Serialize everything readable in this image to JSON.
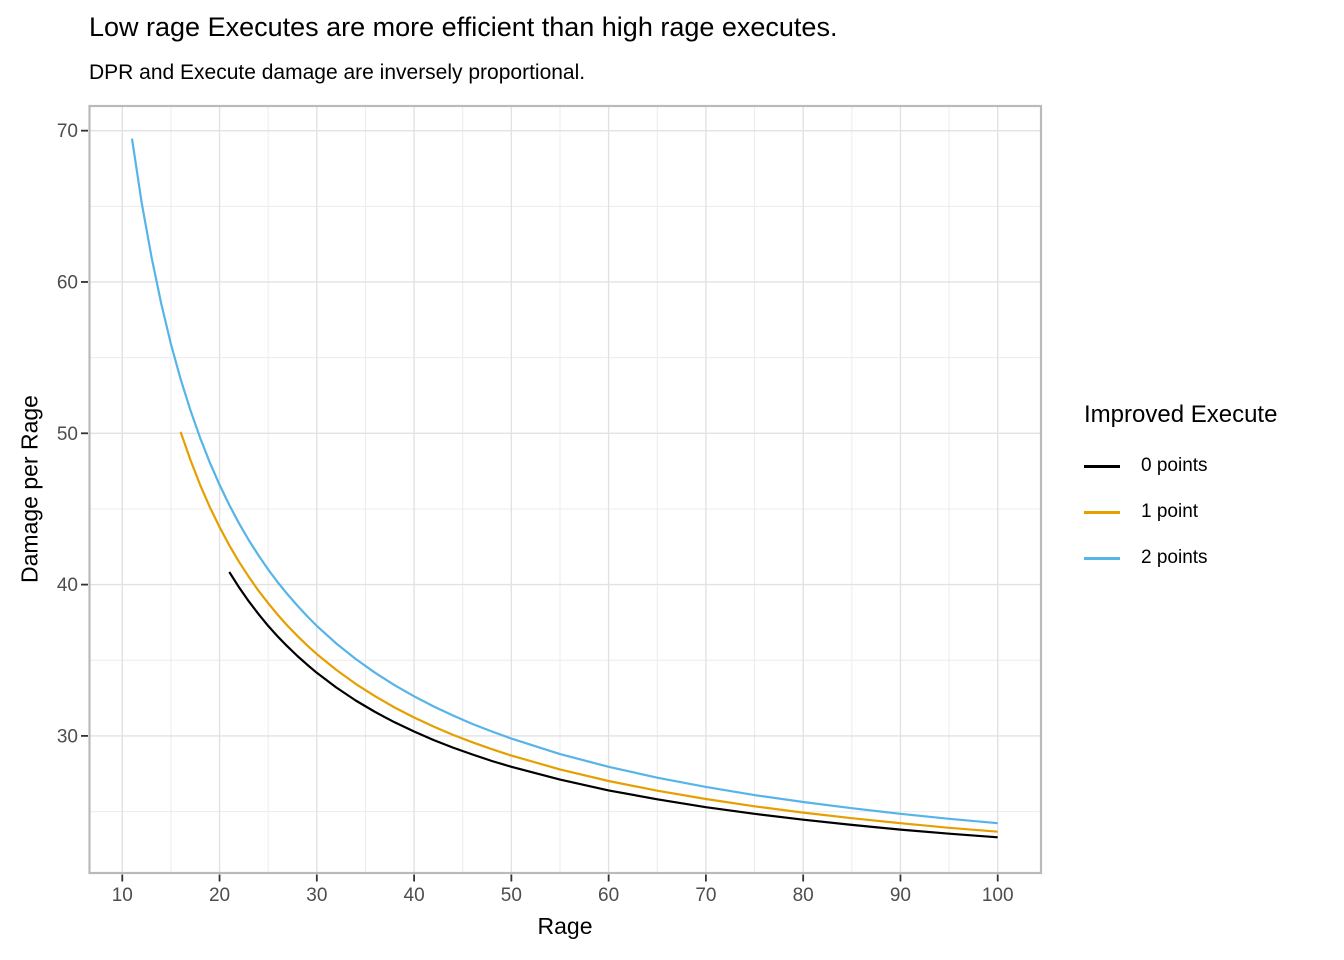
{
  "page": {
    "background": "#FFFFFF"
  },
  "chart_data": {
    "type": "line",
    "title": "Low rage Executes are more efficient than high rage executes.",
    "subtitle": "DPR and Execute damage are inversely proportional.",
    "xlabel": "Rage",
    "ylabel": "Damage per Rage",
    "legend_title": "Improved Execute",
    "legend_position": "right",
    "grid": "major+minor",
    "xlim": [
      6.63,
      104.45
    ],
    "ylim": [
      20.94,
      71.63
    ],
    "x_ticks": [
      10,
      20,
      30,
      40,
      50,
      60,
      70,
      80,
      90,
      100
    ],
    "y_ticks": [
      30,
      40,
      50,
      60,
      70
    ],
    "x_minor_ticks": [
      15,
      25,
      35,
      45,
      55,
      65,
      75,
      85,
      95
    ],
    "y_minor_ticks": [
      25,
      35,
      45,
      55,
      65
    ],
    "colors": {
      "grid_major": "#E2E2E2",
      "grid_minor": "#ECECEC",
      "panel_border": "#BABABA",
      "tick_mark": "#333333",
      "tick_label": "#4D4D4D"
    },
    "series": [
      {
        "name": "0 points",
        "color": "#000000",
        "points": [
          [
            21,
            40.83
          ],
          [
            22,
            39.82
          ],
          [
            23,
            38.9
          ],
          [
            24,
            38.05
          ],
          [
            25,
            37.27
          ],
          [
            26,
            36.56
          ],
          [
            27,
            35.9
          ],
          [
            28,
            35.28
          ],
          [
            29,
            34.71
          ],
          [
            30,
            34.17
          ],
          [
            32,
            33.2
          ],
          [
            34,
            32.34
          ],
          [
            36,
            31.58
          ],
          [
            38,
            30.9
          ],
          [
            40,
            30.29
          ],
          [
            42,
            29.73
          ],
          [
            44,
            29.23
          ],
          [
            46,
            28.77
          ],
          [
            48,
            28.34
          ],
          [
            50,
            27.96
          ],
          [
            55,
            27.11
          ],
          [
            60,
            26.4
          ],
          [
            65,
            25.81
          ],
          [
            70,
            25.29
          ],
          [
            75,
            24.85
          ],
          [
            80,
            24.46
          ],
          [
            85,
            24.12
          ],
          [
            90,
            23.81
          ],
          [
            95,
            23.54
          ],
          [
            100,
            23.3
          ]
        ]
      },
      {
        "name": "1 point",
        "color": "#E69F00",
        "points": [
          [
            16,
            50.09
          ],
          [
            17,
            48.24
          ],
          [
            18,
            46.59
          ],
          [
            19,
            45.12
          ],
          [
            20,
            43.8
          ],
          [
            21,
            42.6
          ],
          [
            22,
            41.51
          ],
          [
            23,
            40.52
          ],
          [
            24,
            39.6
          ],
          [
            25,
            38.77
          ],
          [
            26,
            37.99
          ],
          [
            27,
            37.27
          ],
          [
            28,
            36.61
          ],
          [
            29,
            35.99
          ],
          [
            30,
            35.41
          ],
          [
            32,
            34.36
          ],
          [
            34,
            33.44
          ],
          [
            36,
            32.62
          ],
          [
            38,
            31.88
          ],
          [
            40,
            31.22
          ],
          [
            42,
            30.62
          ],
          [
            44,
            30.07
          ],
          [
            46,
            29.58
          ],
          [
            48,
            29.12
          ],
          [
            50,
            28.7
          ],
          [
            55,
            27.79
          ],
          [
            60,
            27.02
          ],
          [
            65,
            26.38
          ],
          [
            70,
            25.83
          ],
          [
            75,
            25.35
          ],
          [
            80,
            24.93
          ],
          [
            85,
            24.56
          ],
          [
            90,
            24.23
          ],
          [
            95,
            23.93
          ],
          [
            100,
            23.67
          ]
        ]
      },
      {
        "name": "2 points",
        "color": "#56B4E9",
        "points": [
          [
            11,
            69.47
          ],
          [
            12,
            65.23
          ],
          [
            13,
            61.65
          ],
          [
            14,
            58.58
          ],
          [
            15,
            55.91
          ],
          [
            16,
            53.58
          ],
          [
            17,
            51.53
          ],
          [
            18,
            49.7
          ],
          [
            19,
            48.07
          ],
          [
            20,
            46.59
          ],
          [
            21,
            45.26
          ],
          [
            22,
            44.05
          ],
          [
            23,
            42.95
          ],
          [
            24,
            41.93
          ],
          [
            25,
            41.0
          ],
          [
            26,
            40.14
          ],
          [
            27,
            39.35
          ],
          [
            28,
            38.61
          ],
          [
            29,
            37.92
          ],
          [
            30,
            37.27
          ],
          [
            32,
            36.11
          ],
          [
            34,
            35.08
          ],
          [
            36,
            34.17
          ],
          [
            38,
            33.35
          ],
          [
            40,
            32.62
          ],
          [
            42,
            31.95
          ],
          [
            44,
            31.35
          ],
          [
            46,
            30.79
          ],
          [
            48,
            30.29
          ],
          [
            50,
            29.82
          ],
          [
            55,
            28.8
          ],
          [
            60,
            27.96
          ],
          [
            65,
            27.24
          ],
          [
            70,
            26.63
          ],
          [
            75,
            26.09
          ],
          [
            80,
            25.63
          ],
          [
            85,
            25.22
          ],
          [
            90,
            24.85
          ],
          [
            95,
            24.52
          ],
          [
            100,
            24.23
          ]
        ]
      }
    ]
  }
}
